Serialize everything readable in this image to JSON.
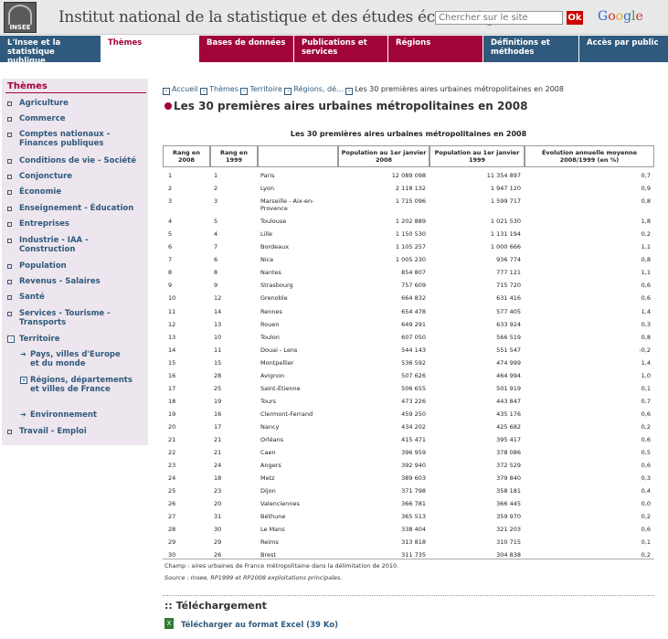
{
  "header": {
    "logo_text": "INSEE",
    "site_title": "Institut national de la statistique et des études économiques",
    "search_placeholder": "Chercher sur le site",
    "ok_label": "Ok",
    "google": [
      "G",
      "o",
      "o",
      "g",
      "l",
      "e"
    ]
  },
  "nav": [
    "L'Insee et la statistique publique",
    "Thèmes",
    "Bases de données",
    "Publications et services",
    "Régions",
    "Définitions et méthodes",
    "Accès par public"
  ],
  "sidebar": {
    "title": "Thèmes",
    "items": [
      "Agriculture",
      "Commerce",
      "Comptes nationaux - Finances publiques",
      "Conditions de vie - Société",
      "Conjoncture",
      "Économie",
      "Enseignement - Éducation",
      "Entreprises",
      "Industrie - IAA - Construction",
      "Population",
      "Revenus - Salaires",
      "Santé",
      "Services - Tourisme - Transports",
      "Territoire",
      "Pays, villes d'Europe et du monde",
      "Régions, départements et villes de France",
      "Environnement",
      "Travail - Emploi"
    ]
  },
  "breadcrumb": [
    "Accueil",
    "Thèmes",
    "Territoire",
    "Régions, dé...",
    "Les 30 premières aires urbaines métropolitaines en 2008"
  ],
  "page_title": "Les 30 premières aires urbaines métropolitaines en 2008",
  "table": {
    "caption": "Les 30 premières aires urbaines métropolitaines en 2008",
    "headers": [
      "Rang en 2008",
      "Rang en 1999",
      "",
      "Population au 1er janvier 2008",
      "Population au 1er janvier 1999",
      "Évolution annuelle moyenne 2008/1999 (en %)"
    ],
    "rows": [
      [
        "1",
        "1",
        "Paris",
        "12 089 098",
        "11 354 897",
        "0,7"
      ],
      [
        "2",
        "2",
        "Lyon",
        "2 118 132",
        "1 947 120",
        "0,9"
      ],
      [
        "3",
        "3",
        "Marseille - Aix-en-Provence",
        "1 715 096",
        "1 599 717",
        "0,8"
      ],
      [
        "4",
        "5",
        "Toulouse",
        "1 202 889",
        "1 021 530",
        "1,8"
      ],
      [
        "5",
        "4",
        "Lille",
        "1 150 530",
        "1 131 194",
        "0,2"
      ],
      [
        "6",
        "7",
        "Bordeaux",
        "1 105 257",
        "1 000 666",
        "1,1"
      ],
      [
        "7",
        "6",
        "Nice",
        "1 005 230",
        "936 774",
        "0,8"
      ],
      [
        "8",
        "8",
        "Nantes",
        "854 807",
        "777 121",
        "1,1"
      ],
      [
        "9",
        "9",
        "Strasbourg",
        "757 609",
        "715 720",
        "0,6"
      ],
      [
        "10",
        "12",
        "Grenoble",
        "664 832",
        "631 416",
        "0,6"
      ],
      [
        "11",
        "14",
        "Rennes",
        "654 478",
        "577 405",
        "1,4"
      ],
      [
        "12",
        "13",
        "Rouen",
        "649 291",
        "633 924",
        "0,3"
      ],
      [
        "13",
        "10",
        "Toulon",
        "607 050",
        "566 519",
        "0,8"
      ],
      [
        "14",
        "11",
        "Douai - Lens",
        "544 143",
        "551 547",
        "-0,2"
      ],
      [
        "15",
        "15",
        "Montpellier",
        "536 592",
        "474 999",
        "1,4"
      ],
      [
        "16",
        "28",
        "Avignon",
        "507 626",
        "464 994",
        "1,0"
      ],
      [
        "17",
        "25",
        "Saint-Étienne",
        "506 655",
        "501 919",
        "0,1"
      ],
      [
        "18",
        "19",
        "Tours",
        "473 226",
        "443 847",
        "0,7"
      ],
      [
        "19",
        "16",
        "Clermont-Ferrand",
        "459 250",
        "435 176",
        "0,6"
      ],
      [
        "20",
        "17",
        "Nancy",
        "434 202",
        "425 682",
        "0,2"
      ],
      [
        "21",
        "21",
        "Orléans",
        "415 471",
        "395 417",
        "0,6"
      ],
      [
        "22",
        "21",
        "Caen",
        "396 959",
        "378 086",
        "0,5"
      ],
      [
        "23",
        "24",
        "Angers",
        "392 940",
        "372 529",
        "0,6"
      ],
      [
        "24",
        "18",
        "Metz",
        "389 603",
        "379 840",
        "0,3"
      ],
      [
        "25",
        "23",
        "Dijon",
        "371 798",
        "358 181",
        "0,4"
      ],
      [
        "26",
        "20",
        "Valenciennes",
        "366 781",
        "366 445",
        "0,0"
      ],
      [
        "27",
        "31",
        "Béthune",
        "365 513",
        "359 970",
        "0,2"
      ],
      [
        "28",
        "30",
        "Le Mans",
        "338 404",
        "321 203",
        "0,6"
      ],
      [
        "29",
        "29",
        "Reims",
        "313 818",
        "310 715",
        "0,1"
      ],
      [
        "30",
        "26",
        "Brest",
        "311 735",
        "304 838",
        "0,2"
      ]
    ]
  },
  "notes": [
    "Champ : aires urbaines de France métropolitaine dans la délimitation de 2010.",
    "Source : Insee, RP1999 et RP2008 exploitations principales."
  ],
  "download": {
    "title": ":: Téléchargement",
    "link": "Télécharger au format Excel (39 Ko)"
  },
  "colors": {
    "brand": "#a0043a",
    "nav_blue": "#2f5a7d",
    "sidebar_bg": "#eee6ee"
  }
}
